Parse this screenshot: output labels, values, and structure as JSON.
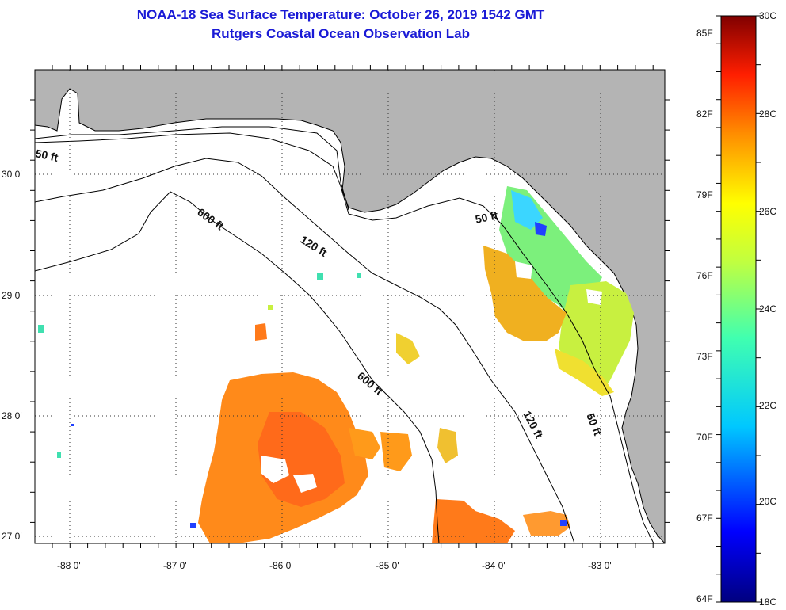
{
  "title": {
    "line1": "NOAA-18 Sea Surface Temperature:  October 26, 2019 1542 GMT",
    "line2": "Rutgers Coastal Ocean Observation Lab"
  },
  "axes": {
    "longitude_labels": [
      "-88 0'",
      "-87 0'",
      "-86 0'",
      "-85 0'",
      "-84 0'",
      "-83 0'"
    ],
    "latitude_labels": [
      "30 0'",
      "29 0'",
      "28 0'",
      "27 0'"
    ]
  },
  "contour_labels": {
    "nw_50": "50 ft",
    "nw_600": "600 ft",
    "nw_120": "120 ft",
    "fl_50": "50 ft",
    "mid_600": "600 ft",
    "s_120": "120 ft",
    "s_50": "50 ft"
  },
  "colorbar": {
    "fahrenheit": [
      "85F",
      "82F",
      "79F",
      "76F",
      "73F",
      "70F",
      "67F",
      "64F"
    ],
    "celsius": [
      "30C",
      "28C",
      "26C",
      "24C",
      "22C",
      "20C",
      "18C"
    ]
  },
  "colors": {
    "land": "#b4b4b4",
    "ocean": "#ffffff",
    "title": "#1a1ad6"
  }
}
